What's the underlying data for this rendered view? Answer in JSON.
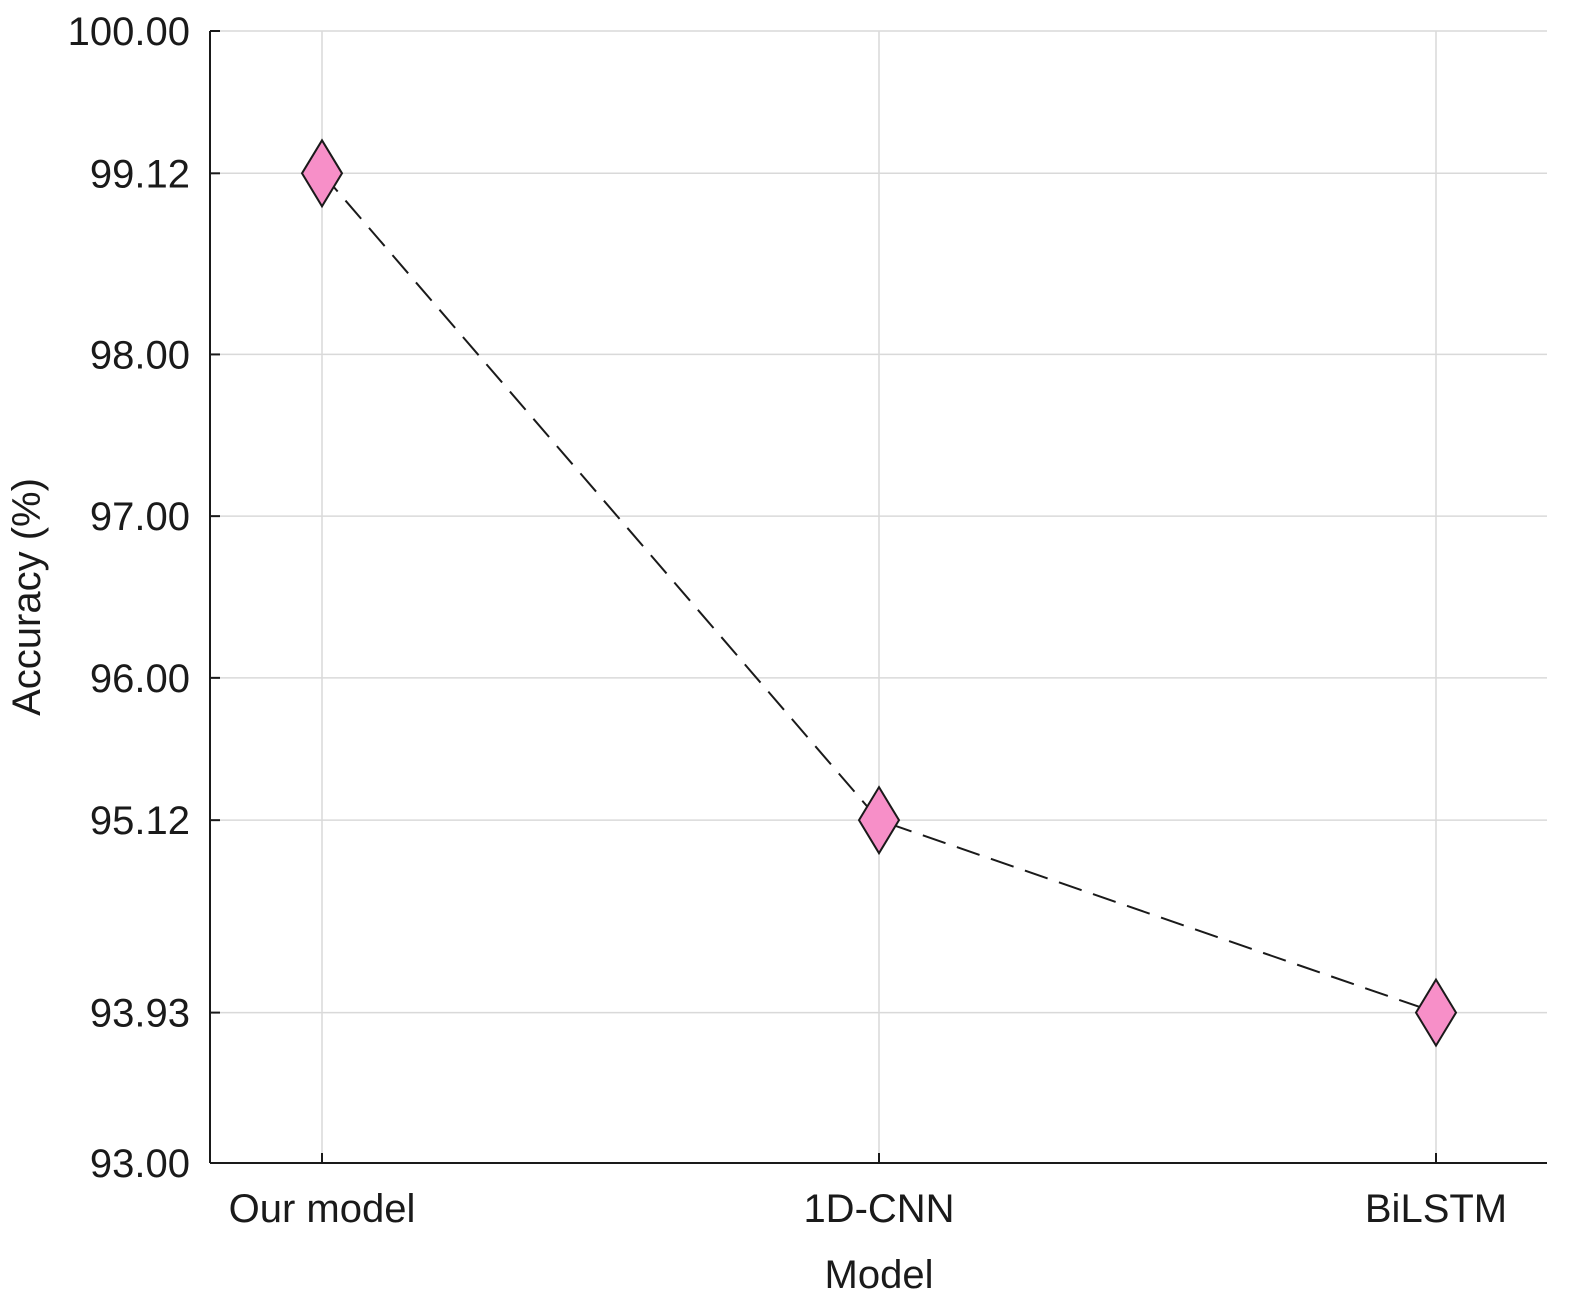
{
  "chart_data": {
    "type": "line",
    "title": "",
    "xlabel": "Model",
    "ylabel": "Accuracy (%)",
    "categories": [
      "Our model",
      "1D-CNN",
      "BiLSTM"
    ],
    "series": [
      {
        "values": [
          99.12,
          95.12,
          93.93
        ]
      }
    ],
    "y_ticks": [
      "93.00",
      "93.93",
      "95.12",
      "96.00",
      "97.00",
      "98.00",
      "99.12",
      "100.00"
    ],
    "ylim": [
      93,
      100
    ],
    "grid": true,
    "line_style": "dashed",
    "marker": "diamond",
    "colors": {
      "marker_fill": "#f78fc8",
      "marker_stroke": "#1a1a1a",
      "line": "#1a1a1a",
      "grid": "#d9d9d9",
      "axis": "#1a1a1a"
    }
  }
}
